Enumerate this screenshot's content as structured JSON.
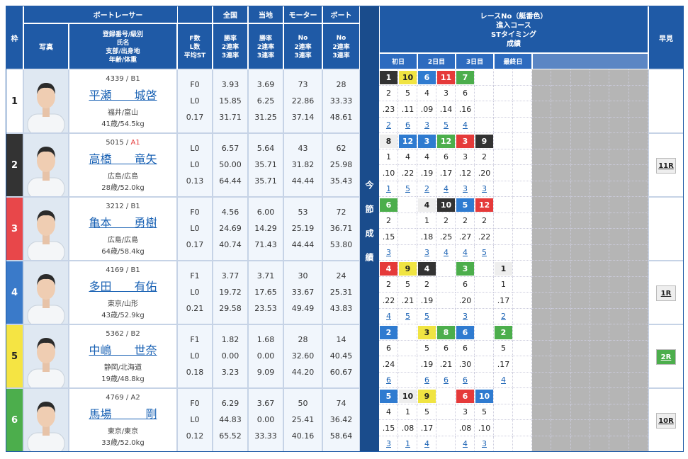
{
  "header": {
    "waku": "枠",
    "photo": "写真",
    "racer": "ボートレーサー",
    "racer_fields": [
      "登録番号/級別",
      "氏名",
      "支部/出身地",
      "年齢/体重"
    ],
    "stat_fields": [
      "F数",
      "L数",
      "平均ST"
    ],
    "national": "全国",
    "local": "当地",
    "motor": "モーター",
    "boat": "ボート",
    "rate_fields": [
      "勝率",
      "2連率",
      "3連率"
    ],
    "no_fields": [
      "No",
      "2連率",
      "3連率"
    ],
    "races_fields": [
      "レースNo（艇番色）",
      "進入コース",
      "STタイミング",
      "成績"
    ],
    "days": [
      "初日",
      "2日目",
      "3日目",
      "最終日"
    ],
    "series": "今節成績",
    "hayami": "早見"
  },
  "rows": [
    {
      "waku": "1",
      "color": "#ffffff",
      "reg": "4339 /",
      "cls": "B1",
      "name": "平瀬　　城啓",
      "branch": "福井/富山",
      "age": "41歳/54.5kg",
      "stats": [
        "F0",
        "L0",
        "0.17"
      ],
      "national": [
        "3.93",
        "15.85",
        "31.71"
      ],
      "local": [
        "3.69",
        "6.25",
        "31.25"
      ],
      "motor": [
        "73",
        "22.86",
        "37.14"
      ],
      "boat": [
        "28",
        "33.33",
        "48.61"
      ],
      "races": [
        {
          "no": "1",
          "color": "#333333",
          "course": "2",
          "st": ".23",
          "result": "2"
        },
        {
          "no": "10",
          "color": "#f0e442",
          "course": "5",
          "st": ".11",
          "result": "6"
        },
        {
          "no": "6",
          "color": "#2f7bd0",
          "course": "4",
          "st": ".09",
          "result": "3"
        },
        {
          "no": "11",
          "color": "#e53a3a",
          "course": "3",
          "st": ".14",
          "result": "5"
        },
        {
          "no": "7",
          "color": "#4cae4c",
          "course": "6",
          "st": ".16",
          "result": "4"
        },
        null,
        null,
        null
      ]
    },
    {
      "waku": "2",
      "color": "#333333",
      "reg": "5015 /",
      "cls": "A1",
      "name": "高橋　　竜矢",
      "branch": "広島/広島",
      "age": "28歳/52.0kg",
      "stats": [
        "L0",
        "L0",
        "0.13"
      ],
      "national": [
        "6.57",
        "50.00",
        "64.44"
      ],
      "local": [
        "5.64",
        "35.71",
        "35.71"
      ],
      "motor": [
        "43",
        "31.82",
        "44.44"
      ],
      "boat": [
        "62",
        "25.98",
        "35.43"
      ],
      "races": [
        {
          "no": "8",
          "color": "#eeeeee",
          "course": "1",
          "st": ".10",
          "result": "1"
        },
        {
          "no": "12",
          "color": "#2f7bd0",
          "course": "4",
          "st": ".22",
          "result": "5"
        },
        {
          "no": "3",
          "color": "#2f7bd0",
          "course": "4",
          "st": ".19",
          "result": "2"
        },
        {
          "no": "12",
          "color": "#4cae4c",
          "course": "6",
          "st": ".17",
          "result": "4"
        },
        {
          "no": "3",
          "color": "#e53a3a",
          "course": "3",
          "st": ".12",
          "result": "3"
        },
        {
          "no": "9",
          "color": "#333333",
          "course": "2",
          "st": ".20",
          "result": "3"
        },
        null,
        null
      ],
      "hayami": "11R"
    },
    {
      "waku": "3",
      "color": "#e8474a",
      "reg": "3212 /",
      "cls": "B1",
      "name": "亀本　　勇樹",
      "branch": "広島/広島",
      "age": "64歳/58.4kg",
      "stats": [
        "F0",
        "L0",
        "0.17"
      ],
      "national": [
        "4.56",
        "24.69",
        "40.74"
      ],
      "local": [
        "6.00",
        "14.29",
        "71.43"
      ],
      "motor": [
        "53",
        "25.19",
        "44.44"
      ],
      "boat": [
        "72",
        "36.71",
        "53.80"
      ],
      "races": [
        {
          "no": "6",
          "color": "#4cae4c",
          "course": "2",
          "st": ".15",
          "result": "3"
        },
        null,
        {
          "no": "4",
          "color": "#eeeeee",
          "course": "1",
          "st": ".18",
          "result": "3"
        },
        {
          "no": "10",
          "color": "#333333",
          "course": "2",
          "st": ".25",
          "result": "4"
        },
        {
          "no": "5",
          "color": "#2f7bd0",
          "course": "2",
          "st": ".27",
          "result": "4"
        },
        {
          "no": "12",
          "color": "#e53a3a",
          "course": "2",
          "st": ".22",
          "result": "5"
        },
        null,
        null
      ]
    },
    {
      "waku": "4",
      "color": "#3a7ac9",
      "reg": "4169 /",
      "cls": "B1",
      "name": "多田　　有佑",
      "branch": "東京/山形",
      "age": "43歳/52.9kg",
      "stats": [
        "F1",
        "L0",
        "0.21"
      ],
      "national": [
        "3.77",
        "19.72",
        "29.58"
      ],
      "local": [
        "3.71",
        "17.65",
        "23.53"
      ],
      "motor": [
        "30",
        "33.67",
        "49.49"
      ],
      "boat": [
        "24",
        "25.31",
        "43.83"
      ],
      "races": [
        {
          "no": "4",
          "color": "#e53a3a",
          "course": "2",
          "st": ".22",
          "result": "4"
        },
        {
          "no": "9",
          "color": "#f0e442",
          "course": "5",
          "st": ".21",
          "result": "5"
        },
        {
          "no": "4",
          "color": "#333333",
          "course": "2",
          "st": ".19",
          "result": "5"
        },
        null,
        {
          "no": "3",
          "color": "#4cae4c",
          "course": "6",
          "st": ".20",
          "result": "3"
        },
        null,
        {
          "no": "1",
          "color": "#eeeeee",
          "course": "1",
          "st": ".17",
          "result": "2"
        },
        null
      ],
      "hayami": "1R"
    },
    {
      "waku": "5",
      "color": "#f5e443",
      "reg": "5362 /",
      "cls": "B2",
      "name": "中嶋　　世奈",
      "branch": "静岡/北海道",
      "age": "19歳/48.8kg",
      "stats": [
        "F1",
        "L0",
        "0.18"
      ],
      "national": [
        "1.82",
        "0.00",
        "3.23"
      ],
      "local": [
        "1.68",
        "0.00",
        "9.09"
      ],
      "motor": [
        "28",
        "32.60",
        "44.20"
      ],
      "boat": [
        "14",
        "40.45",
        "60.67"
      ],
      "races": [
        {
          "no": "2",
          "color": "#2f7bd0",
          "course": "6",
          "st": ".24",
          "result": "6"
        },
        null,
        {
          "no": "3",
          "color": "#f0e442",
          "course": "5",
          "st": ".19",
          "result": "6"
        },
        {
          "no": "8",
          "color": "#4cae4c",
          "course": "6",
          "st": ".21",
          "result": "6"
        },
        {
          "no": "6",
          "color": "#2f7bd0",
          "course": "6",
          "st": ".30",
          "result": "6"
        },
        null,
        {
          "no": "2",
          "color": "#4cae4c",
          "course": "5",
          "st": ".17",
          "result": "4"
        },
        null
      ],
      "hayami": "2R",
      "hayami_color": "#4cae4c"
    },
    {
      "waku": "6",
      "color": "#4cae4c",
      "reg": "4769 /",
      "cls": "A2",
      "name": "馬場　　　剛",
      "branch": "東京/東京",
      "age": "33歳/52.0kg",
      "stats": [
        "F0",
        "L0",
        "0.12"
      ],
      "national": [
        "6.29",
        "44.83",
        "65.52"
      ],
      "local": [
        "3.67",
        "0.00",
        "33.33"
      ],
      "motor": [
        "50",
        "25.41",
        "40.16"
      ],
      "boat": [
        "74",
        "36.42",
        "58.64"
      ],
      "races": [
        {
          "no": "5",
          "color": "#2f7bd0",
          "course": "4",
          "st": ".15",
          "result": "3"
        },
        {
          "no": "10",
          "color": "#eeeeee",
          "course": "1",
          "st": ".08",
          "result": "1"
        },
        {
          "no": "9",
          "color": "#f0e442",
          "course": "5",
          "st": ".17",
          "result": "4"
        },
        null,
        {
          "no": "6",
          "color": "#e53a3a",
          "course": "3",
          "st": ".08",
          "result": "4"
        },
        {
          "no": "10",
          "color": "#2f7bd0",
          "course": "5",
          "st": ".10",
          "result": "3"
        },
        null,
        null
      ],
      "hayami": "10R"
    }
  ]
}
